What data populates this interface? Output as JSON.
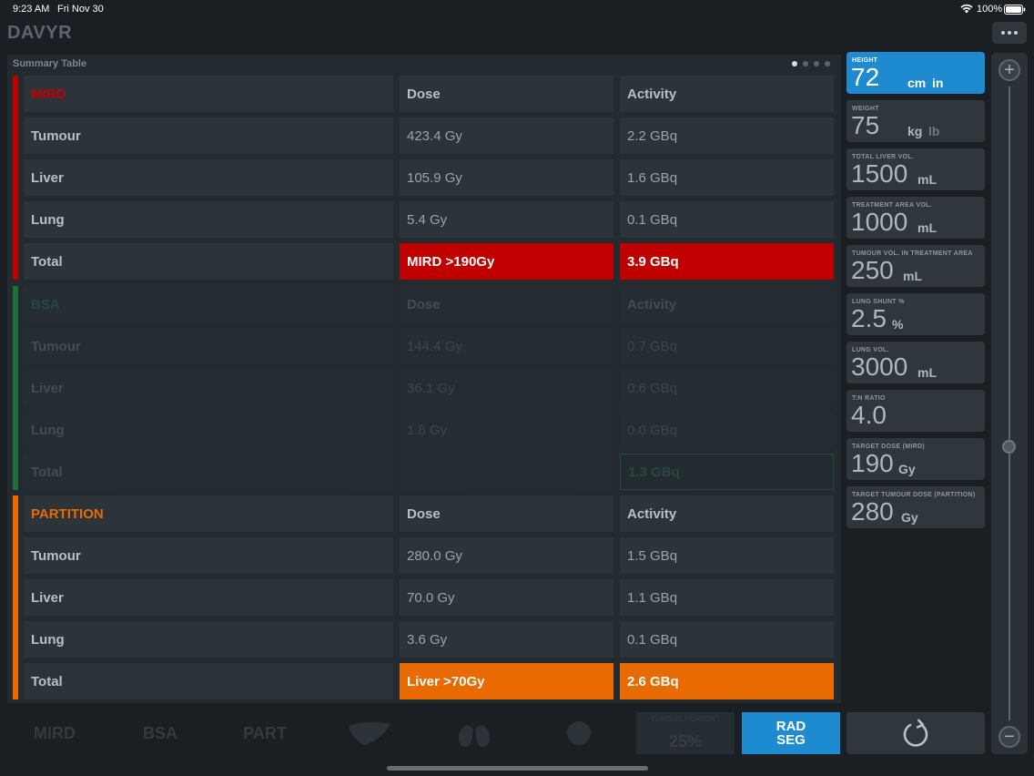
{
  "status_bar": {
    "time": "9:23 AM",
    "date": "Fri Nov 30",
    "battery": "100%"
  },
  "app": {
    "title": "DAVYR"
  },
  "summary": {
    "title": "Summary Table",
    "sections": [
      {
        "key": "mird",
        "header": [
          "MIRD",
          "Dose",
          "Activity"
        ],
        "rows": [
          [
            "Tumour",
            "423.4 Gy",
            "2.2 GBq"
          ],
          [
            "Liver",
            "105.9 Gy",
            "1.6 GBq"
          ],
          [
            "Lung",
            "5.4 Gy",
            "0.1 GBq"
          ]
        ],
        "total": [
          "Total",
          "MIRD >190Gy",
          "3.9 GBq"
        ]
      },
      {
        "key": "bsa",
        "header": [
          "BSA",
          "Dose",
          "Activity"
        ],
        "rows": [
          [
            "Tumour",
            "144.4 Gy",
            "0.7 GBq"
          ],
          [
            "Liver",
            "36.1 Gy",
            "0.6 GBq"
          ],
          [
            "Lung",
            "1.8 Gy",
            "0.0 GBq"
          ]
        ],
        "total": [
          "Total",
          "",
          "1.3 GBq"
        ]
      },
      {
        "key": "partition",
        "header": [
          "PARTITION",
          "Dose",
          "Activity"
        ],
        "rows": [
          [
            "Tumour",
            "280.0 Gy",
            "1.5 GBq"
          ],
          [
            "Liver",
            "70.0 Gy",
            "1.1 GBq"
          ],
          [
            "Lung",
            "3.6 Gy",
            "0.1 GBq"
          ]
        ],
        "total": [
          "Total",
          "Liver >70Gy",
          "2.6 GBq"
        ]
      }
    ]
  },
  "params": [
    {
      "caption": "HEIGHT",
      "value": "72",
      "unit": "cm",
      "unit_alt": "in"
    },
    {
      "caption": "WEIGHT",
      "value": "75",
      "unit": "kg",
      "unit_alt": "lb"
    },
    {
      "caption": "TOTAL LIVER VOL.",
      "value": "1500",
      "unit": "mL"
    },
    {
      "caption": "TREATMENT AREA VOL.",
      "value": "1000",
      "unit": "mL"
    },
    {
      "caption": "TUMOUR VOL. IN TREATMENT AREA",
      "value": "250",
      "unit": "mL"
    },
    {
      "caption": "LUNG SHUNT %",
      "value": "2.5",
      "unit": "%"
    },
    {
      "caption": "LUNG VOL.",
      "value": "3000",
      "unit": "mL"
    },
    {
      "caption": "T:N RATIO",
      "value": "4.0",
      "unit": ""
    },
    {
      "caption": "TARGET DOSE (MIRD)",
      "value": "190",
      "unit": "Gy"
    },
    {
      "caption": "TARGET TUMOUR DOSE (PARTITION)",
      "value": "280",
      "unit": "Gy"
    }
  ],
  "toolbar": {
    "mird": "MIRD",
    "bsa": "BSA",
    "part": "PART",
    "percent_label": "TUMOUR PERCENT",
    "percent_value": "25%",
    "radseg_line1": "RAD",
    "radseg_line2": "SEG"
  },
  "colors": {
    "mird": "#c00000",
    "bsa": "#1f6e3c",
    "partition": "#e96a00",
    "accent": "#1e8bd1"
  }
}
